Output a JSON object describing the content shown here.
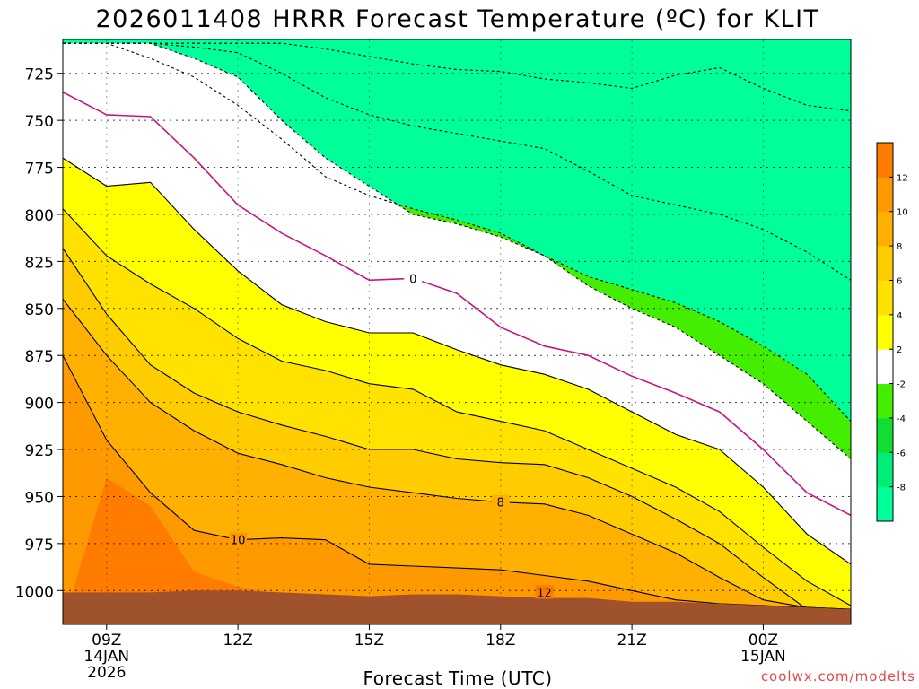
{
  "chart_data": {
    "type": "contour",
    "title": "2026011408 HRRR Forecast Temperature (ºC) for KLIT",
    "xlabel": "Forecast Time (UTC)",
    "ylabel": "",
    "credit": "coolwx.com/modelts",
    "y_unit": "hPa",
    "ylim": [
      1018,
      707
    ],
    "xlim": [
      8,
      26
    ],
    "x_ticks": [
      {
        "hour": 9,
        "lines": [
          "09Z",
          "14JAN",
          "2026"
        ]
      },
      {
        "hour": 12,
        "lines": [
          "12Z"
        ]
      },
      {
        "hour": 15,
        "lines": [
          "15Z"
        ]
      },
      {
        "hour": 18,
        "lines": [
          "18Z"
        ]
      },
      {
        "hour": 21,
        "lines": [
          "21Z"
        ]
      },
      {
        "hour": 24,
        "lines": [
          "00Z",
          "15JAN"
        ]
      }
    ],
    "y_ticks": [
      725,
      750,
      775,
      800,
      825,
      850,
      875,
      900,
      925,
      950,
      975,
      1000
    ],
    "colorbar": {
      "levels": [
        -10,
        -8,
        -6,
        -4,
        -2,
        2,
        4,
        6,
        8,
        10,
        12,
        14
      ],
      "colors": [
        "#00ff99",
        "#00ee77",
        "#11dd33",
        "#44ee00",
        "#ffffff",
        "#ffff00",
        "#ffe200",
        "#ffcc00",
        "#ffb000",
        "#ff9900",
        "#ff7c00"
      ],
      "tick_labels": [
        "-8",
        "-6",
        "-4",
        "-2",
        "2",
        "4",
        "6",
        "8",
        "10",
        "12"
      ]
    },
    "ground_color": "#a0522d",
    "hours": [
      8,
      9,
      10,
      11,
      12,
      13,
      14,
      15,
      16,
      17,
      18,
      19,
      20,
      21,
      22,
      23,
      24,
      25,
      26
    ],
    "surface_pressure": [
      1001,
      1001,
      1001,
      1000,
      1000,
      1001,
      1002,
      1003,
      1002,
      1002,
      1003,
      1004,
      1004,
      1006,
      1006,
      1007,
      1008,
      1009,
      1010
    ],
    "isotherms": [
      {
        "temp": -8,
        "style": "dashed",
        "pressure": [
          709,
          709,
          709,
          709,
          709,
          709,
          712,
          716,
          720,
          723,
          724,
          728,
          730,
          733,
          726,
          722,
          733,
          742,
          745
        ]
      },
      {
        "temp": -6,
        "style": "dashed",
        "pressure": [
          709,
          709,
          709,
          711,
          714,
          725,
          738,
          747,
          753,
          757,
          761,
          765,
          777,
          790,
          795,
          800,
          808,
          820,
          835
        ]
      },
      {
        "temp": -4,
        "style": "dashed",
        "pressure": [
          709,
          709,
          717,
          727,
          742,
          760,
          780,
          790,
          797,
          803,
          810,
          822,
          833,
          840,
          847,
          857,
          870,
          885,
          910
        ]
      },
      {
        "temp": -2,
        "style": "dashed",
        "pressure": [
          709,
          709,
          709,
          717,
          727,
          750,
          770,
          785,
          800,
          805,
          812,
          822,
          838,
          850,
          860,
          875,
          890,
          910,
          930
        ]
      },
      {
        "temp": 0,
        "style": "solid",
        "label": "0",
        "label_hour": 16,
        "pressure": [
          735,
          747,
          748,
          770,
          795,
          810,
          822,
          835,
          834,
          842,
          860,
          870,
          875,
          886,
          895,
          905,
          925,
          948,
          960
        ]
      },
      {
        "temp": 2,
        "style": "solid",
        "pressure": [
          770,
          785,
          783,
          808,
          830,
          848,
          857,
          863,
          863,
          872,
          880,
          885,
          893,
          905,
          917,
          925,
          945,
          970,
          986
        ]
      },
      {
        "temp": 4,
        "style": "solid",
        "pressure": [
          797,
          822,
          837,
          850,
          866,
          878,
          883,
          890,
          893,
          905,
          910,
          915,
          925,
          935,
          945,
          958,
          977,
          995,
          1008
        ]
      },
      {
        "temp": 6,
        "style": "solid",
        "pressure": [
          818,
          853,
          880,
          895,
          905,
          912,
          918,
          925,
          925,
          930,
          932,
          933,
          940,
          950,
          962,
          975,
          993,
          1010,
          1010
        ]
      },
      {
        "temp": 8,
        "style": "solid",
        "label": "8",
        "label_hour": 18,
        "pressure": [
          845,
          875,
          900,
          915,
          927,
          933,
          940,
          945,
          948,
          951,
          953,
          954,
          960,
          970,
          980,
          993,
          1005,
          1009,
          1010
        ]
      },
      {
        "temp": 10,
        "style": "solid",
        "label": "10",
        "label_hour": 12,
        "pressure": [
          875,
          920,
          948,
          968,
          973,
          972,
          973,
          986,
          987,
          988,
          989,
          992,
          995,
          1000,
          1005,
          1007,
          1008,
          1009,
          1010
        ]
      },
      {
        "temp": 12,
        "style": "solid",
        "label": "12",
        "label_hour": 19,
        "pressure": [
          null,
          null,
          null,
          null,
          null,
          null,
          null,
          null,
          null,
          null,
          null,
          null,
          null,
          null,
          null,
          null,
          null,
          null,
          null
        ],
        "near_surface": true
      }
    ]
  }
}
